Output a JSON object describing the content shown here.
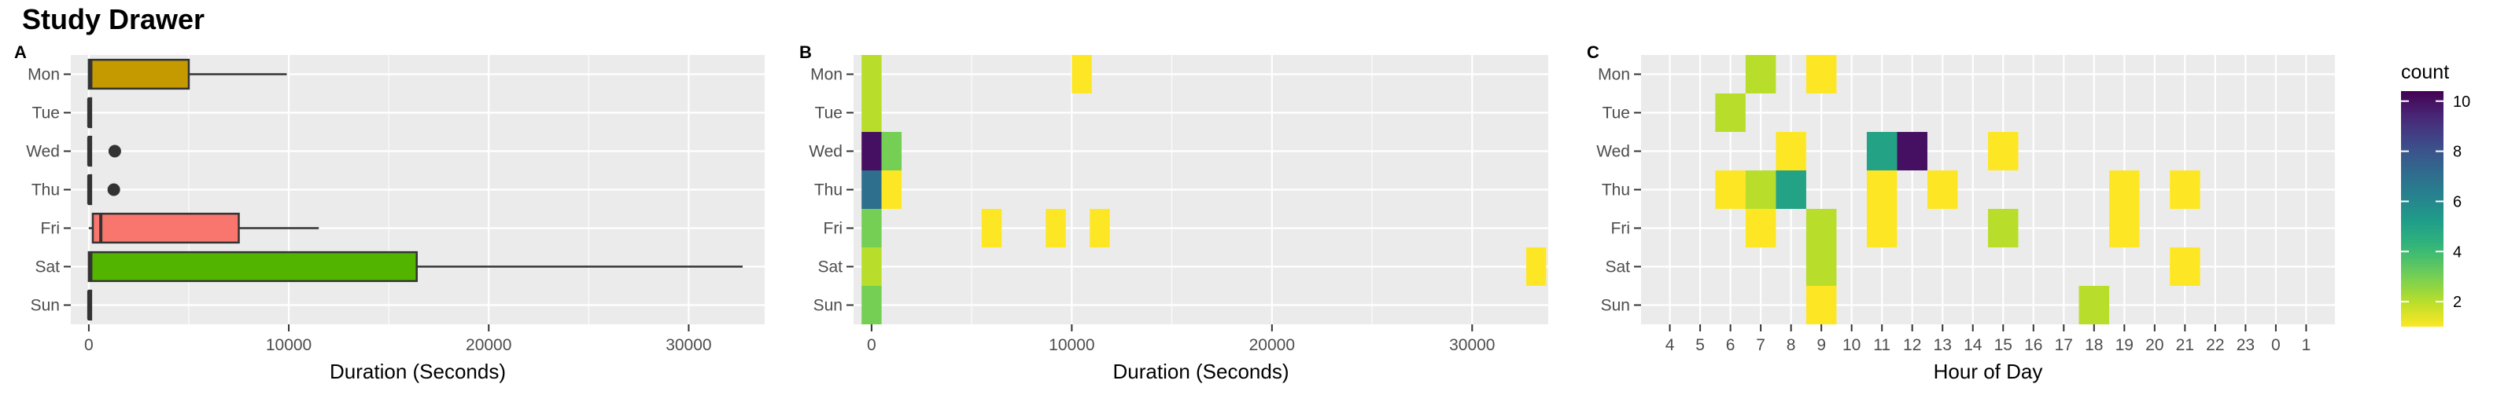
{
  "title": "Study Drawer",
  "days": [
    "Mon",
    "Tue",
    "Wed",
    "Thu",
    "Fri",
    "Sat",
    "Sun"
  ],
  "chart_data": [
    {
      "panel": "A",
      "type": "boxplot",
      "xlabel": "Duration (Seconds)",
      "xlim": [
        -900,
        33800
      ],
      "xticks": [
        0,
        10000,
        20000,
        30000
      ],
      "grid": true,
      "categories": [
        "Mon",
        "Tue",
        "Wed",
        "Thu",
        "Fri",
        "Sat",
        "Sun"
      ],
      "boxes": [
        {
          "day": "Mon",
          "min": 0,
          "q1": 0,
          "median": 100,
          "q3": 5000,
          "max": 9900,
          "outliers": [],
          "color": "#C49A00"
        },
        {
          "day": "Tue",
          "min": 0,
          "q1": 0,
          "median": 0,
          "q3": 50,
          "max": 100,
          "outliers": [],
          "color": "#53B400"
        },
        {
          "day": "Wed",
          "min": 0,
          "q1": 0,
          "median": 0,
          "q3": 50,
          "max": 100,
          "outliers": [
            1300
          ],
          "color": "#00C094"
        },
        {
          "day": "Thu",
          "min": 0,
          "q1": 0,
          "median": 0,
          "q3": 50,
          "max": 100,
          "outliers": [
            1250
          ],
          "color": "#00B6EB"
        },
        {
          "day": "Fri",
          "min": 0,
          "q1": 200,
          "median": 600,
          "q3": 7500,
          "max": 11500,
          "outliers": [],
          "color": "#F8766D"
        },
        {
          "day": "Sat",
          "min": 0,
          "q1": 0,
          "median": 100,
          "q3": 16400,
          "max": 32700,
          "outliers": [],
          "color": "#53B400"
        },
        {
          "day": "Sun",
          "min": 0,
          "q1": 0,
          "median": 0,
          "q3": 50,
          "max": 100,
          "outliers": [],
          "color": "#A58AFF"
        }
      ]
    },
    {
      "panel": "B",
      "type": "heatmap",
      "xlabel": "Duration (Seconds)",
      "xlim": [
        -900,
        33800
      ],
      "xticks": [
        0,
        10000,
        20000,
        30000
      ],
      "bin_width": 1000,
      "categories": [
        "Mon",
        "Tue",
        "Wed",
        "Thu",
        "Fri",
        "Sat",
        "Sun"
      ],
      "cells": [
        {
          "day": "Mon",
          "x": 0,
          "count": 2
        },
        {
          "day": "Mon",
          "x": 10500,
          "count": 1
        },
        {
          "day": "Tue",
          "x": 0,
          "count": 2
        },
        {
          "day": "Wed",
          "x": 0,
          "count": 10
        },
        {
          "day": "Wed",
          "x": 1000,
          "count": 3
        },
        {
          "day": "Thu",
          "x": 0,
          "count": 7
        },
        {
          "day": "Thu",
          "x": 1000,
          "count": 1
        },
        {
          "day": "Fri",
          "x": 0,
          "count": 3
        },
        {
          "day": "Fri",
          "x": 6000,
          "count": 1
        },
        {
          "day": "Fri",
          "x": 9200,
          "count": 1
        },
        {
          "day": "Fri",
          "x": 11400,
          "count": 1
        },
        {
          "day": "Sat",
          "x": 0,
          "count": 2
        },
        {
          "day": "Sat",
          "x": 33200,
          "count": 1
        },
        {
          "day": "Sun",
          "x": 0,
          "count": 3
        }
      ]
    },
    {
      "panel": "C",
      "type": "heatmap",
      "xlabel": "Hour of Day",
      "hour_labels": [
        "4",
        "5",
        "6",
        "7",
        "8",
        "9",
        "10",
        "11",
        "12",
        "13",
        "14",
        "15",
        "16",
        "17",
        "18",
        "19",
        "20",
        "21",
        "22",
        "23",
        "0",
        "1"
      ],
      "categories": [
        "Mon",
        "Tue",
        "Wed",
        "Thu",
        "Fri",
        "Sat",
        "Sun"
      ],
      "cells": [
        {
          "day": "Mon",
          "hour": "7",
          "count": 2
        },
        {
          "day": "Mon",
          "hour": "9",
          "count": 1
        },
        {
          "day": "Tue",
          "hour": "6",
          "count": 2
        },
        {
          "day": "Wed",
          "hour": "8",
          "count": 1
        },
        {
          "day": "Wed",
          "hour": "11",
          "count": 5
        },
        {
          "day": "Wed",
          "hour": "12",
          "count": 10
        },
        {
          "day": "Wed",
          "hour": "15",
          "count": 1
        },
        {
          "day": "Thu",
          "hour": "6",
          "count": 1
        },
        {
          "day": "Thu",
          "hour": "7",
          "count": 2
        },
        {
          "day": "Thu",
          "hour": "8",
          "count": 5
        },
        {
          "day": "Thu",
          "hour": "11",
          "count": 1
        },
        {
          "day": "Thu",
          "hour": "13",
          "count": 1
        },
        {
          "day": "Thu",
          "hour": "19",
          "count": 1
        },
        {
          "day": "Thu",
          "hour": "21",
          "count": 1
        },
        {
          "day": "Fri",
          "hour": "7",
          "count": 1
        },
        {
          "day": "Fri",
          "hour": "9",
          "count": 2
        },
        {
          "day": "Fri",
          "hour": "11",
          "count": 1
        },
        {
          "day": "Fri",
          "hour": "15",
          "count": 2
        },
        {
          "day": "Fri",
          "hour": "19",
          "count": 1
        },
        {
          "day": "Sat",
          "hour": "9",
          "count": 2
        },
        {
          "day": "Sat",
          "hour": "21",
          "count": 1
        },
        {
          "day": "Sun",
          "hour": "9",
          "count": 1
        },
        {
          "day": "Sun",
          "hour": "18",
          "count": 2
        }
      ]
    }
  ],
  "legend": {
    "title": "count",
    "min": 1,
    "max": 10.4,
    "ticks": [
      2,
      4,
      6,
      8,
      10
    ],
    "palette": "viridis"
  },
  "colors": {
    "panel_bg": "#EBEBEB",
    "grid": "#FFFFFF",
    "axis_text": "#4D4D4D"
  }
}
